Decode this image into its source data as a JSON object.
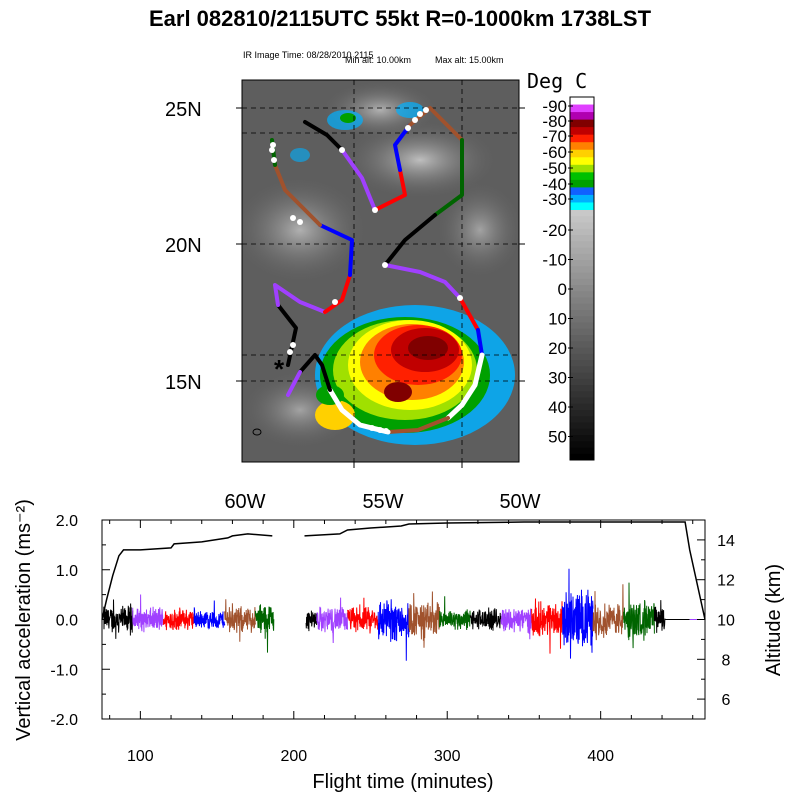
{
  "header": {
    "title": "Earl 082810/2115UTC 55kt  R=0-1000km 1738LST",
    "ir_time": "IR Image Time: 08/28/2010 2115",
    "min_alt": "Min alt: 10.00km",
    "max_alt": "Max alt: 15.00km"
  },
  "colorbar": {
    "title": "Deg C",
    "labels": [
      "-90",
      "-80",
      "-70",
      "-60",
      "-50",
      "-40",
      "-30",
      "-20",
      "-10",
      "0",
      "10",
      "20",
      "30",
      "40",
      "50"
    ],
    "colors": [
      "#ffffff",
      "#e040ff",
      "#b000b0",
      "#800000",
      "#c00000",
      "#ff2000",
      "#ff8000",
      "#ffd000",
      "#ffff00",
      "#a0e000",
      "#00c000",
      "#00a000",
      "#1060ff",
      "#00b0ff",
      "#00ffff"
    ]
  },
  "map": {
    "lat_labels": [
      "25N",
      "20N",
      "15N"
    ],
    "lon_labels": [
      "60W",
      "55W",
      "50W"
    ],
    "track_colors": [
      "#000000",
      "#a040ff",
      "#ff0000",
      "#0000ff",
      "#a0522d",
      "#006400"
    ],
    "storm_marker": "*"
  },
  "chart_data": {
    "type": "line",
    "xlabel": "Flight time (minutes)",
    "ylabel": "Vertical acceleration (ms⁻²)",
    "y2label": "Altitude (km)",
    "xlim": [
      75,
      468
    ],
    "ylim": [
      -2.0,
      2.0
    ],
    "y2lim": [
      5,
      15
    ],
    "xticks": [
      100,
      200,
      300,
      400
    ],
    "yticks": [
      "2.0",
      "1.0",
      "0.0",
      "-1.0",
      "-2.0"
    ],
    "y2ticks": [
      "6",
      "8",
      "10",
      "12",
      "14"
    ],
    "altitude": {
      "name": "Altitude",
      "x": [
        75,
        78,
        82,
        86,
        89,
        100,
        120,
        122,
        140,
        157,
        160,
        170,
        186,
        207,
        230,
        235,
        250,
        270,
        275,
        300,
        350,
        400,
        430,
        455,
        458,
        468
      ],
      "y": [
        10,
        11,
        12.2,
        13.2,
        13.5,
        13.5,
        13.6,
        13.8,
        13.9,
        14.1,
        14.2,
        14.3,
        14.2,
        14.2,
        14.3,
        14.5,
        14.6,
        14.7,
        14.8,
        14.85,
        14.9,
        14.9,
        14.9,
        14.9,
        13.5,
        10
      ]
    },
    "acceleration_segments": [
      {
        "x0": 76,
        "x1": 95,
        "color": "#000000",
        "amp": 0.32
      },
      {
        "x0": 95,
        "x1": 115,
        "color": "#a040ff",
        "amp": 0.28
      },
      {
        "x0": 115,
        "x1": 135,
        "color": "#ff0000",
        "amp": 0.26
      },
      {
        "x0": 135,
        "x1": 155,
        "color": "#0000ff",
        "amp": 0.22
      },
      {
        "x0": 155,
        "x1": 175,
        "color": "#a0522d",
        "amp": 0.3
      },
      {
        "x0": 175,
        "x1": 187,
        "color": "#006400",
        "amp": 0.4
      },
      {
        "x0": 208,
        "x1": 215,
        "color": "#000000",
        "amp": 0.25
      },
      {
        "x0": 215,
        "x1": 235,
        "color": "#a040ff",
        "amp": 0.3
      },
      {
        "x0": 235,
        "x1": 255,
        "color": "#ff0000",
        "amp": 0.28
      },
      {
        "x0": 255,
        "x1": 275,
        "color": "#0000ff",
        "amp": 0.5
      },
      {
        "x0": 275,
        "x1": 295,
        "color": "#a0522d",
        "amp": 0.4
      },
      {
        "x0": 295,
        "x1": 315,
        "color": "#006400",
        "amp": 0.25
      },
      {
        "x0": 315,
        "x1": 335,
        "color": "#000000",
        "amp": 0.25
      },
      {
        "x0": 335,
        "x1": 355,
        "color": "#a040ff",
        "amp": 0.3
      },
      {
        "x0": 355,
        "x1": 375,
        "color": "#ff0000",
        "amp": 0.4
      },
      {
        "x0": 375,
        "x1": 395,
        "color": "#0000ff",
        "amp": 0.7
      },
      {
        "x0": 395,
        "x1": 415,
        "color": "#a0522d",
        "amp": 0.4
      },
      {
        "x0": 415,
        "x1": 435,
        "color": "#006400",
        "amp": 0.45
      },
      {
        "x0": 435,
        "x1": 442,
        "color": "#000000",
        "amp": 0.3
      },
      {
        "x0": 442,
        "x1": 458,
        "color": "#000000",
        "amp": 0.0
      },
      {
        "x0": 458,
        "x1": 467,
        "color": "#a040ff",
        "amp": 0.0
      }
    ]
  }
}
